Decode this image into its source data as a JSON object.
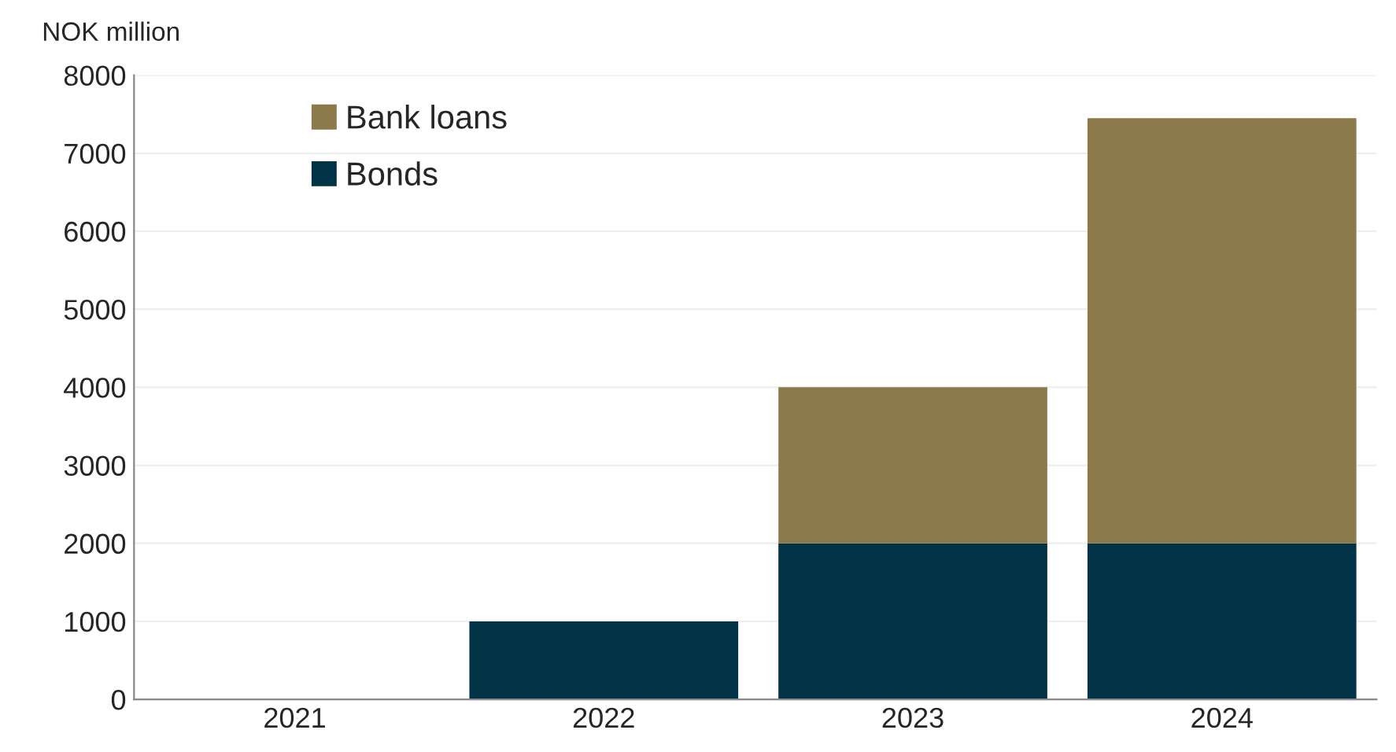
{
  "chart_data": {
    "type": "bar",
    "stacked": true,
    "ylabel": "NOK million",
    "categories": [
      "2021",
      "2022",
      "2023",
      "2024"
    ],
    "series": [
      {
        "name": "Bonds",
        "color": "#023246",
        "values": [
          null,
          1000,
          2000,
          2000
        ]
      },
      {
        "name": "Bank loans",
        "color": "#8c7a4b",
        "values": [
          null,
          null,
          2000,
          5450
        ]
      }
    ],
    "ylim": [
      0,
      8000
    ],
    "yticks": [
      0,
      1000,
      2000,
      3000,
      4000,
      5000,
      6000,
      7000,
      8000
    ],
    "grid": "y",
    "legend": "top left"
  }
}
